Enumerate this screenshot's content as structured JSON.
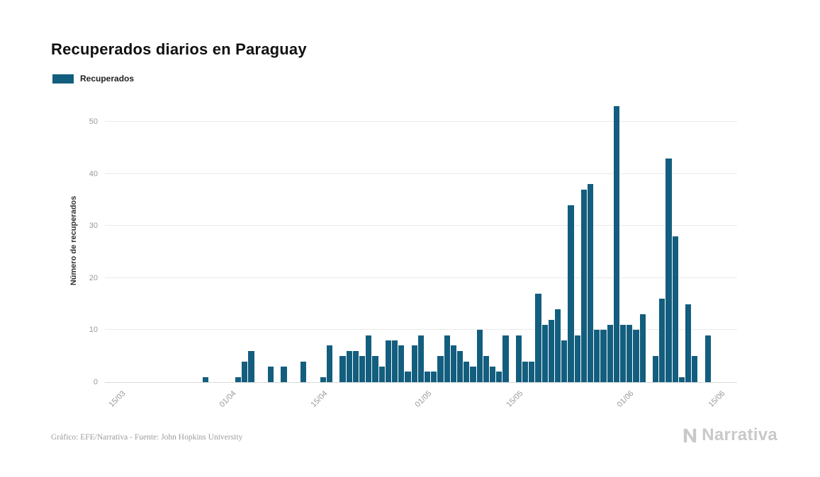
{
  "page": {
    "title": "Recuperados diarios en Paraguay",
    "footer_credit": "Gráfico: EFE/Narrativa - Fuente: John Hopkins University",
    "brand_name": "Narrativa"
  },
  "legend": {
    "label": "Recuperados",
    "color": "#135e7e"
  },
  "chart_data": {
    "type": "bar",
    "title": "Recuperados diarios en Paraguay",
    "xlabel": "",
    "ylabel": "Número de recuperados",
    "ylim": [
      0,
      50
    ],
    "yticks": [
      0,
      10,
      20,
      30,
      40,
      50
    ],
    "xticks": [
      "15/03",
      "01/04",
      "15/04",
      "01/05",
      "15/05",
      "01/06",
      "15/06"
    ],
    "grid": "horizontal",
    "legend_position": "top-left",
    "series_name": "Recuperados",
    "bar_color": "#135e7e",
    "categories": [
      "13/03",
      "14/03",
      "15/03",
      "16/03",
      "17/03",
      "18/03",
      "19/03",
      "20/03",
      "21/03",
      "22/03",
      "23/03",
      "24/03",
      "25/03",
      "26/03",
      "27/03",
      "28/03",
      "29/03",
      "30/03",
      "31/03",
      "01/04",
      "02/04",
      "03/04",
      "04/04",
      "05/04",
      "06/04",
      "07/04",
      "08/04",
      "09/04",
      "10/04",
      "11/04",
      "12/04",
      "13/04",
      "14/04",
      "15/04",
      "16/04",
      "17/04",
      "18/04",
      "19/04",
      "20/04",
      "21/04",
      "22/04",
      "23/04",
      "24/04",
      "25/04",
      "26/04",
      "27/04",
      "28/04",
      "29/04",
      "30/04",
      "01/05",
      "02/05",
      "03/05",
      "04/05",
      "05/05",
      "06/05",
      "07/05",
      "08/05",
      "09/05",
      "10/05",
      "11/05",
      "12/05",
      "13/05",
      "14/05",
      "15/05",
      "16/05",
      "17/05",
      "18/05",
      "19/05",
      "20/05",
      "21/05",
      "22/05",
      "23/05",
      "24/05",
      "25/05",
      "26/05",
      "27/05",
      "28/05",
      "29/05",
      "30/05",
      "31/05",
      "01/06",
      "02/06",
      "03/06",
      "04/06",
      "05/06",
      "06/06",
      "07/06",
      "08/06",
      "09/06",
      "10/06",
      "11/06",
      "12/06",
      "13/06",
      "14/06",
      "15/06",
      "16/06",
      "17/06"
    ],
    "values": [
      0,
      0,
      0,
      0,
      0,
      0,
      0,
      0,
      0,
      0,
      0,
      0,
      0,
      0,
      0,
      1,
      0,
      0,
      0,
      0,
      1,
      4,
      6,
      0,
      0,
      3,
      0,
      3,
      0,
      0,
      4,
      0,
      0,
      1,
      7,
      0,
      5,
      6,
      6,
      5,
      9,
      5,
      3,
      8,
      8,
      7,
      2,
      7,
      9,
      2,
      2,
      5,
      9,
      7,
      6,
      4,
      3,
      10,
      5,
      3,
      2,
      9,
      0,
      9,
      4,
      4,
      17,
      11,
      12,
      14,
      8,
      34,
      9,
      37,
      38,
      10,
      10,
      11,
      53,
      11,
      11,
      10,
      13,
      0,
      5,
      16,
      43,
      28,
      1,
      15,
      5,
      0,
      9,
      0,
      0,
      0,
      0
    ]
  }
}
